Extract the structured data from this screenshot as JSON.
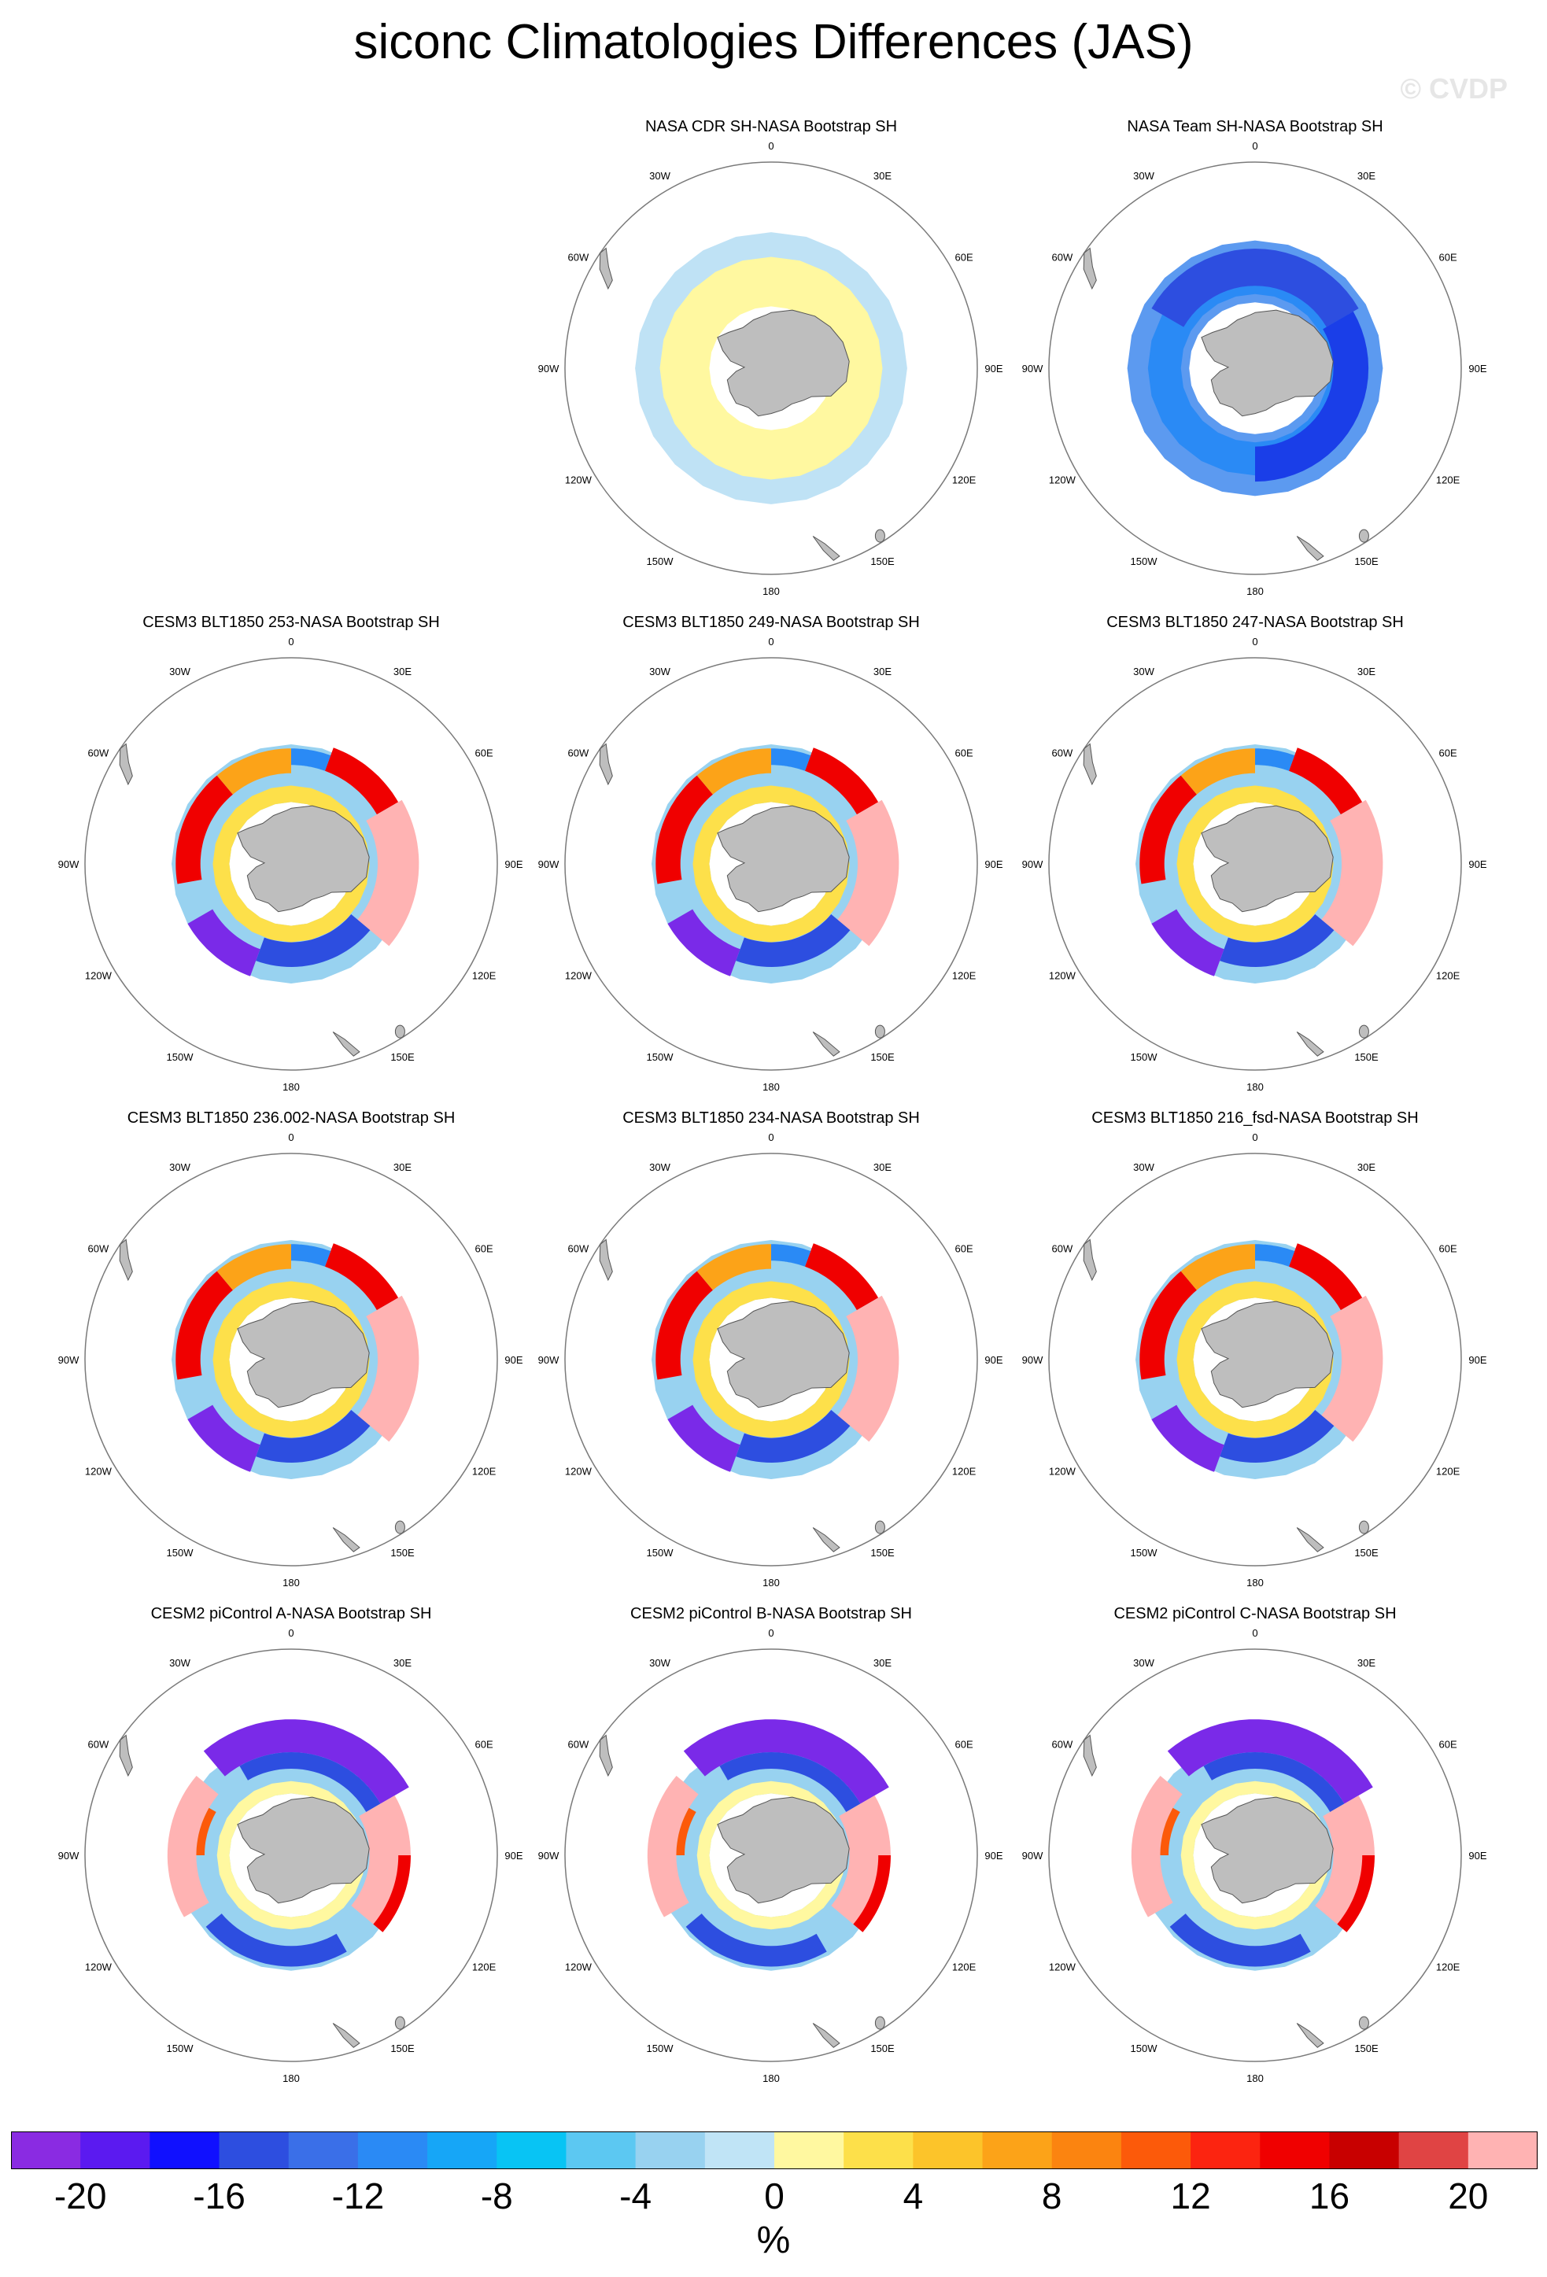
{
  "title": "siconc Climatologies Differences (JAS)",
  "watermark": "© CVDP",
  "units": "%",
  "lon_labels": [
    {
      "text": "0",
      "angle": 0
    },
    {
      "text": "30E",
      "angle": 30
    },
    {
      "text": "60E",
      "angle": 60
    },
    {
      "text": "90E",
      "angle": 90
    },
    {
      "text": "120E",
      "angle": 120
    },
    {
      "text": "150E",
      "angle": 150
    },
    {
      "text": "180",
      "angle": 180
    },
    {
      "text": "150W",
      "angle": 210
    },
    {
      "text": "120W",
      "angle": 240
    },
    {
      "text": "90W",
      "angle": 270
    },
    {
      "text": "60W",
      "angle": 300
    },
    {
      "text": "30W",
      "angle": 330
    }
  ],
  "colors": {
    "land": "#bebebe",
    "circle": "#7a7a7a"
  },
  "colorbar": {
    "tick_labels": [
      "-20",
      "-16",
      "-12",
      "-8",
      "-4",
      "0",
      "4",
      "8",
      "12",
      "16",
      "20"
    ],
    "colors": [
      "#8a2be2",
      "#5b1af0",
      "#1010ff",
      "#2d4ee0",
      "#3a6fe8",
      "#2a8af5",
      "#16a6f7",
      "#08c4f4",
      "#5cc8f2",
      "#98d2f0",
      "#c0e4f6",
      "#fff8a0",
      "#fde04a",
      "#fcc42a",
      "#fca318",
      "#fb8410",
      "#fc5a0a",
      "#fc2410",
      "#f00000",
      "#c80000",
      "#e04444",
      "#ffb3b3"
    ]
  },
  "panels": [
    {
      "title": "NASA CDR SH-NASA Bootstrap SH",
      "pattern": "cdr"
    },
    {
      "title": "NASA Team SH-NASA Bootstrap SH",
      "pattern": "team"
    },
    {
      "title": "CESM3 BLT1850 253-NASA Bootstrap SH",
      "pattern": "cesm3"
    },
    {
      "title": "CESM3 BLT1850 249-NASA Bootstrap SH",
      "pattern": "cesm3"
    },
    {
      "title": "CESM3 BLT1850 247-NASA Bootstrap SH",
      "pattern": "cesm3"
    },
    {
      "title": "CESM3 BLT1850 236.002-NASA Bootstrap SH",
      "pattern": "cesm3"
    },
    {
      "title": "CESM3 BLT1850 234-NASA Bootstrap SH",
      "pattern": "cesm3"
    },
    {
      "title": "CESM3 BLT1850 216_fsd-NASA Bootstrap SH",
      "pattern": "cesm3"
    },
    {
      "title": "CESM2 piControl A-NASA Bootstrap SH",
      "pattern": "cesm2"
    },
    {
      "title": "CESM2 piControl B-NASA Bootstrap SH",
      "pattern": "cesm2"
    },
    {
      "title": "CESM2 piControl C-NASA Bootstrap SH",
      "pattern": "cesm2"
    }
  ]
}
